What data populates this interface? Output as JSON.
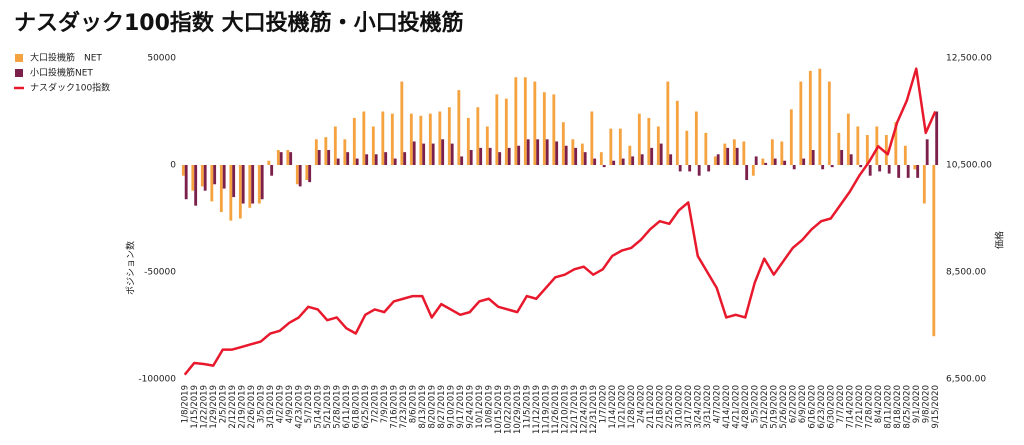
{
  "chart_data": {
    "type": "bar-line",
    "title": "ナスダック100指数 大口投機筋・小口投機筋",
    "y_label": "ポジション数",
    "y2_label": "価格",
    "categories": [
      "1/8/2019",
      "1/15/2019",
      "1/22/2019",
      "1/29/2019",
      "2/5/2019",
      "2/12/2019",
      "2/19/2019",
      "2/26/2019",
      "3/5/2019",
      "3/19/2019",
      "4/2/2019",
      "4/9/2019",
      "4/23/2019",
      "5/7/2019",
      "5/14/2019",
      "5/21/2019",
      "5/28/2019",
      "6/11/2019",
      "6/18/2019",
      "6/25/2019",
      "7/2/2019",
      "7/9/2019",
      "7/16/2019",
      "7/23/2019",
      "8/6/2019",
      "8/13/2019",
      "8/20/2019",
      "8/27/2019",
      "9/10/2019",
      "9/17/2019",
      "9/24/2019",
      "10/1/2019",
      "10/8/2019",
      "10/15/2019",
      "10/22/2019",
      "10/29/2019",
      "11/5/2019",
      "11/12/2019",
      "11/19/2019",
      "11/26/2019",
      "12/10/2019",
      "12/17/2019",
      "12/24/2019",
      "12/31/2019",
      "1/7/2020",
      "1/14/2020",
      "1/21/2020",
      "1/28/2020",
      "2/4/2020",
      "2/11/2020",
      "2/18/2020",
      "2/25/2020",
      "3/10/2020",
      "3/17/2020",
      "3/24/2020",
      "3/31/2020",
      "4/7/2020",
      "4/14/2020",
      "4/21/2020",
      "4/28/2020",
      "5/5/2020",
      "5/12/2020",
      "5/19/2020",
      "5/26/2020",
      "6/2/2020",
      "6/9/2020",
      "6/16/2020",
      "6/23/2020",
      "6/30/2020",
      "7/7/2020",
      "7/14/2020",
      "7/21/2020",
      "7/28/2020",
      "8/4/2020",
      "8/11/2020",
      "8/18/2020",
      "8/25/2020",
      "9/1/2020",
      "9/8/2020",
      "9/15/2020"
    ],
    "series": [
      {
        "name": "大口投機筋　NET",
        "color": "#f5a340",
        "kind": "bar",
        "values": [
          -5000,
          -12000,
          -10000,
          -17000,
          -22000,
          -26000,
          -25000,
          -20000,
          -18000,
          2000,
          7000,
          7000,
          -9000,
          -7000,
          12000,
          13000,
          18000,
          12000,
          22000,
          25000,
          18000,
          25000,
          24000,
          39000,
          24000,
          23000,
          24000,
          25000,
          27000,
          35000,
          22000,
          27000,
          18000,
          33000,
          31000,
          41000,
          41000,
          39000,
          34000,
          33000,
          20000,
          12000,
          10000,
          25000,
          6000,
          17000,
          17000,
          9000,
          24000,
          22000,
          18000,
          39000,
          30000,
          16000,
          25000,
          15000,
          4000,
          10000,
          12000,
          11000,
          -5000,
          3000,
          12000,
          11000,
          26000,
          39000,
          44000,
          45000,
          39000,
          15000,
          24000,
          18000,
          14000,
          18000,
          14000,
          20000,
          9000,
          -2000,
          -18000,
          -80000
        ]
      },
      {
        "name": "小口投機筋NET",
        "color": "#7b1f4b",
        "kind": "bar",
        "values": [
          -16000,
          -19000,
          -12000,
          -9000,
          -11000,
          -15000,
          -18000,
          -18000,
          -16000,
          -5000,
          6000,
          6000,
          -10000,
          -8000,
          7000,
          7000,
          3000,
          6000,
          3000,
          5000,
          5000,
          6000,
          3000,
          6000,
          11000,
          10000,
          10000,
          12000,
          10000,
          4000,
          7000,
          8000,
          8000,
          6000,
          8000,
          9000,
          12000,
          12000,
          12000,
          11000,
          9000,
          8000,
          6000,
          3000,
          -1000,
          2000,
          3000,
          4000,
          5000,
          8000,
          10000,
          5000,
          -3000,
          -3000,
          -5000,
          -3000,
          5000,
          8000,
          8000,
          -7000,
          4000,
          1000,
          3000,
          2000,
          -2000,
          3000,
          7000,
          -2000,
          -1000,
          7000,
          5000,
          -1000,
          -5000,
          -3000,
          -4000,
          -6000,
          -6000,
          -6000,
          12000,
          25000
        ]
      },
      {
        "name": "ナスダック100指数",
        "color": "#e8192c",
        "kind": "line",
        "axis": "y2",
        "values": [
          6580,
          6800,
          6780,
          6750,
          7050,
          7050,
          7100,
          7150,
          7200,
          7350,
          7400,
          7550,
          7650,
          7850,
          7800,
          7600,
          7650,
          7450,
          7350,
          7700,
          7800,
          7750,
          7950,
          8000,
          8050,
          8050,
          7650,
          7900,
          7800,
          7700,
          7750,
          7950,
          8000,
          7850,
          7800,
          7750,
          8050,
          8000,
          8200,
          8400,
          8450,
          8550,
          8600,
          8450,
          8550,
          8800,
          8900,
          8950,
          9100,
          9300,
          9450,
          9400,
          9650,
          9800,
          8800,
          8500,
          8200,
          7650,
          7700,
          7650,
          8300,
          8750,
          8450,
          8700,
          8950,
          9100,
          9300,
          9450,
          9500,
          9750,
          10000,
          10300,
          10550,
          10850,
          10700,
          11300,
          11700,
          12300,
          11100,
          11500
        ]
      }
    ],
    "ylim": [
      -100000,
      50000
    ],
    "yticks": [
      -100000,
      -50000,
      0,
      50000
    ],
    "y2lim": [
      6500,
      12500
    ],
    "y2ticks": [
      {
        "value": 6500,
        "label": "6,500.00"
      },
      {
        "value": 8500,
        "label": "8,500.00"
      },
      {
        "value": 10500,
        "label": "10,500.00"
      },
      {
        "value": 12500,
        "label": "12,500.00"
      }
    ]
  }
}
